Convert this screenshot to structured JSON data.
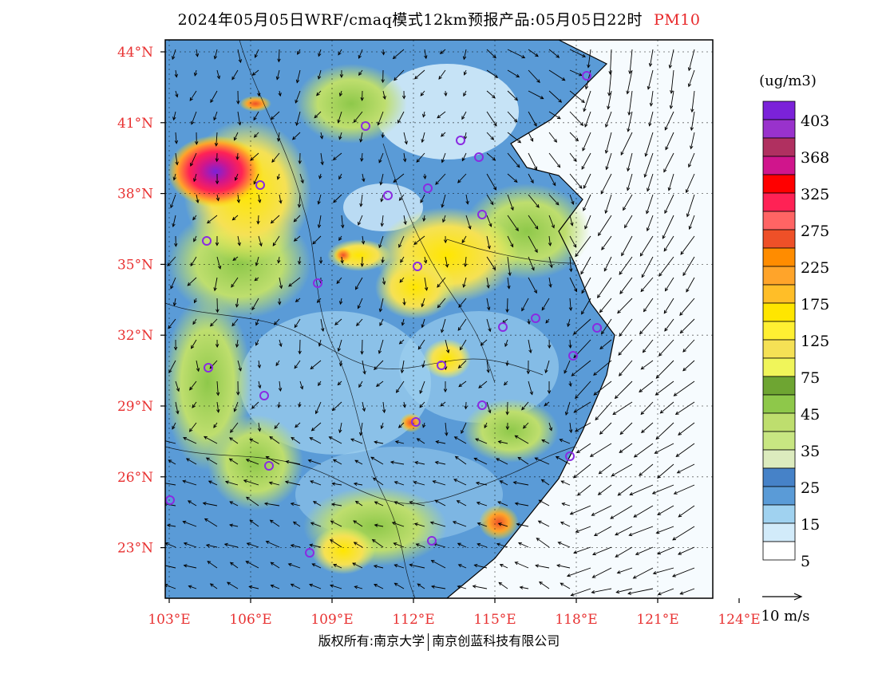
{
  "header": {
    "title": "2024年05月05日WRF/cmaq模式12km预报产品:05月05日22时",
    "variable": "PM10"
  },
  "map": {
    "lat_labels": [
      "44°N",
      "41°N",
      "38°N",
      "35°N",
      "32°N",
      "29°N",
      "26°N",
      "23°N"
    ],
    "lon_labels": [
      "103°E",
      "106°E",
      "109°E",
      "112°E",
      "115°E",
      "118°E",
      "121°E",
      "124°E"
    ],
    "colors": {
      "label": "#e83232",
      "sea": "#ffffff",
      "city_marker": "#8a2be2"
    }
  },
  "colorbar": {
    "unit": "(ug/m3)",
    "tick_labels": [
      "403",
      "368",
      "325",
      "275",
      "225",
      "175",
      "125",
      "75",
      "45",
      "35",
      "25",
      "15",
      "5"
    ],
    "colors": [
      "#7b22d9",
      "#9932cc",
      "#b03060",
      "#d0158c",
      "#ff0000",
      "#ff2255",
      "#ff6464",
      "#ee5028",
      "#ff8c00",
      "#ffa42a",
      "#ffbe28",
      "#ffe600",
      "#fff032",
      "#f5e155",
      "#f0f55a",
      "#6ea532",
      "#8ec84a",
      "#bede6e",
      "#c8e682",
      "#dcebbe",
      "#4682c8",
      "#5a9bd7",
      "#a0d2f0",
      "#d2ebfa",
      "#ffffff"
    ]
  },
  "wind_legend": {
    "label": "10 m/s"
  },
  "footer": {
    "left": "版权所有:南京大学",
    "right": "南京创蓝科技有限公司"
  }
}
